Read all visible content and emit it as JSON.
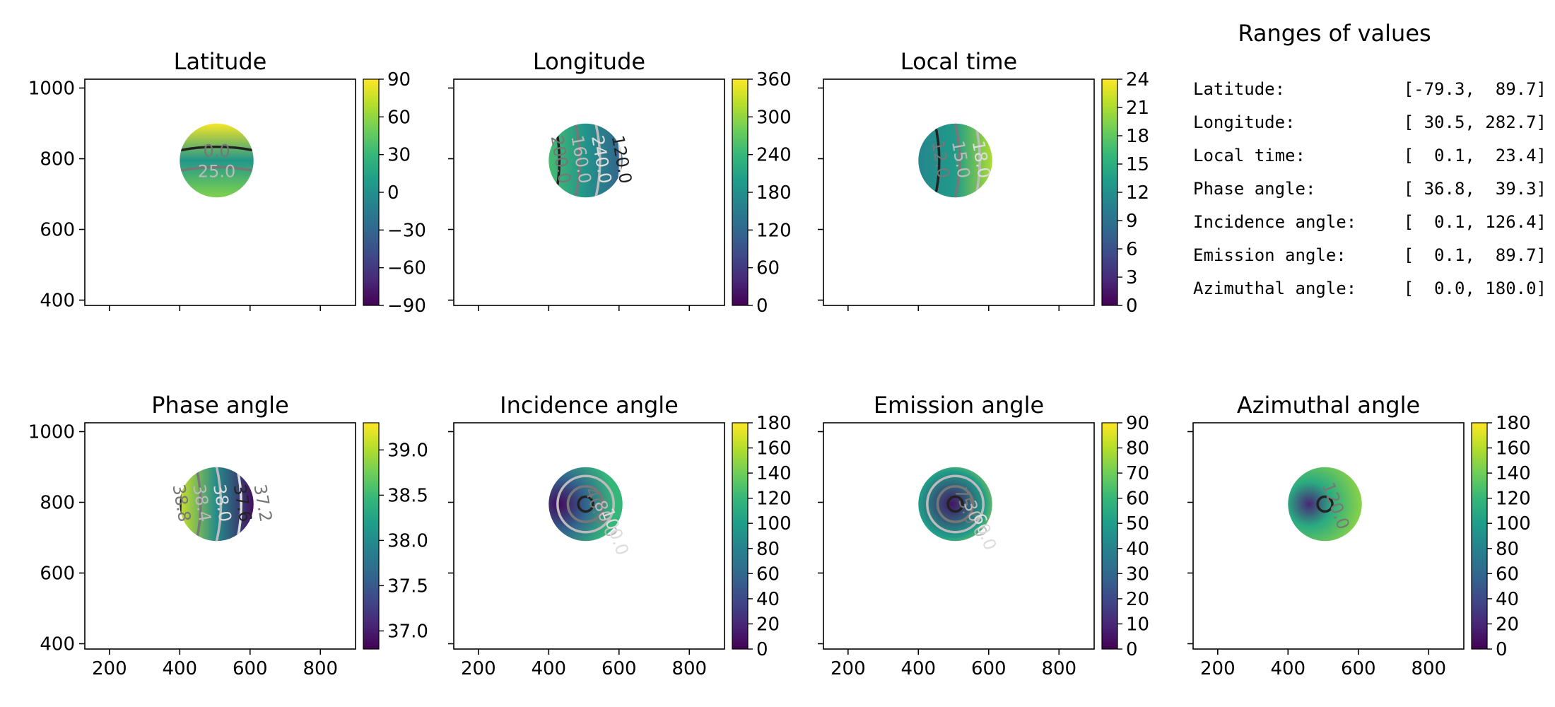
{
  "colormap": [
    "#440154",
    "#482878",
    "#3e4a89",
    "#31688e",
    "#26828e",
    "#1f9e89",
    "#35b779",
    "#6ece58",
    "#b5de2b",
    "#fde725"
  ],
  "chart_data": [
    {
      "type": "heatmap",
      "title": "Latitude",
      "xlim": [
        130,
        900
      ],
      "ylim": [
        385,
        1025
      ],
      "xticks": [
        200,
        400,
        600,
        800
      ],
      "yticks": [
        400,
        600,
        800,
        1000
      ],
      "show_xtick_labels": false,
      "show_ytick_labels": true,
      "disk": {
        "cx": 505,
        "cy": 795,
        "r": 105
      },
      "gradient": {
        "direction": "vertical",
        "stops": [
          {
            "t": 0,
            "v": 88
          },
          {
            "t": 0.5,
            "v": 5
          },
          {
            "t": 1,
            "v": 55
          }
        ]
      },
      "colorbar": {
        "min": -90,
        "max": 90,
        "ticks": [
          90,
          60,
          30,
          0,
          -30,
          -60,
          -90
        ],
        "tick_labels": [
          "90",
          "60",
          "30",
          "0",
          "−30",
          "−60",
          "−90"
        ]
      },
      "contour_labels": [
        "0.0",
        "25.0"
      ]
    },
    {
      "type": "heatmap",
      "title": "Longitude",
      "xlim": [
        130,
        900
      ],
      "ylim": [
        385,
        1025
      ],
      "xticks": [
        200,
        400,
        600,
        800
      ],
      "yticks": [
        400,
        600,
        800,
        1000
      ],
      "show_xtick_labels": false,
      "show_ytick_labels": false,
      "disk": {
        "cx": 505,
        "cy": 795,
        "r": 105
      },
      "gradient": {
        "direction": "horizontal",
        "stops": [
          {
            "t": 0,
            "v": 250
          },
          {
            "t": 0.5,
            "v": 185
          },
          {
            "t": 1,
            "v": 110
          }
        ]
      },
      "colorbar": {
        "min": 0,
        "max": 360,
        "ticks": [
          360,
          300,
          240,
          180,
          120,
          60,
          0
        ],
        "tick_labels": [
          "360",
          "300",
          "240",
          "180",
          "120",
          "60",
          "0"
        ]
      },
      "contour_labels": [
        "200.0",
        "160.0",
        "240.0",
        "120.0"
      ]
    },
    {
      "type": "heatmap",
      "title": "Local time",
      "xlim": [
        130,
        900
      ],
      "ylim": [
        385,
        1025
      ],
      "xticks": [
        200,
        400,
        600,
        800
      ],
      "yticks": [
        400,
        600,
        800,
        1000
      ],
      "show_xtick_labels": false,
      "show_ytick_labels": false,
      "disk": {
        "cx": 505,
        "cy": 795,
        "r": 105
      },
      "gradient": {
        "direction": "horizontal",
        "stops": [
          {
            "t": 0,
            "v": 11
          },
          {
            "t": 0.5,
            "v": 13
          },
          {
            "t": 1,
            "v": 21
          }
        ]
      },
      "colorbar": {
        "min": 0,
        "max": 24,
        "ticks": [
          24,
          21,
          18,
          15,
          12,
          9,
          6,
          3,
          0
        ],
        "tick_labels": [
          "24",
          "21",
          "18",
          "15",
          "12",
          "9",
          "6",
          "3",
          "0"
        ]
      },
      "contour_labels": [
        "12.0",
        "15.0",
        "18.0"
      ]
    },
    {
      "type": "heatmap",
      "title": "Phase angle",
      "xlim": [
        130,
        900
      ],
      "ylim": [
        385,
        1025
      ],
      "xticks": [
        200,
        400,
        600,
        800
      ],
      "yticks": [
        400,
        600,
        800,
        1000
      ],
      "show_xtick_labels": true,
      "show_ytick_labels": true,
      "disk": {
        "cx": 505,
        "cy": 795,
        "r": 105
      },
      "gradient": {
        "direction": "horizontal",
        "stops": [
          {
            "t": 0,
            "v": 39.1
          },
          {
            "t": 0.5,
            "v": 38.0
          },
          {
            "t": 1,
            "v": 36.9
          }
        ]
      },
      "colorbar": {
        "min": 36.8,
        "max": 39.3,
        "ticks": [
          39.0,
          38.5,
          38.0,
          37.5,
          37.0
        ],
        "tick_labels": [
          "39.0",
          "38.5",
          "38.0",
          "37.5",
          "37.0"
        ]
      },
      "contour_labels": [
        "38.8",
        "38.4",
        "38.0",
        "37.6",
        "37.2"
      ]
    },
    {
      "type": "heatmap",
      "title": "Incidence angle",
      "xlim": [
        130,
        900
      ],
      "ylim": [
        385,
        1025
      ],
      "xticks": [
        200,
        400,
        600,
        800
      ],
      "yticks": [
        400,
        600,
        800,
        1000
      ],
      "show_xtick_labels": true,
      "show_ytick_labels": false,
      "disk": {
        "cx": 505,
        "cy": 795,
        "r": 105
      },
      "gradient": {
        "direction": "radial",
        "center": [
          430,
          795
        ],
        "stops": [
          {
            "t": 0,
            "v": 5
          },
          {
            "t": 0.5,
            "v": 60
          },
          {
            "t": 1,
            "v": 120
          }
        ]
      },
      "colorbar": {
        "min": 0,
        "max": 180,
        "ticks": [
          180,
          160,
          140,
          120,
          100,
          80,
          60,
          40,
          20,
          0
        ],
        "tick_labels": [
          "180",
          "160",
          "140",
          "120",
          "100",
          "80",
          "60",
          "40",
          "20",
          "0"
        ]
      },
      "contour_labels": [
        "40.0",
        "80.0",
        "100.0"
      ]
    },
    {
      "type": "heatmap",
      "title": "Emission angle",
      "xlim": [
        130,
        900
      ],
      "ylim": [
        385,
        1025
      ],
      "xticks": [
        200,
        400,
        600,
        800
      ],
      "yticks": [
        400,
        600,
        800,
        1000
      ],
      "show_xtick_labels": true,
      "show_ytick_labels": false,
      "disk": {
        "cx": 505,
        "cy": 795,
        "r": 105
      },
      "gradient": {
        "direction": "radial",
        "center": [
          495,
          795
        ],
        "stops": [
          {
            "t": 0,
            "v": 5
          },
          {
            "t": 0.6,
            "v": 50
          },
          {
            "t": 1,
            "v": 88
          }
        ]
      },
      "colorbar": {
        "min": 0,
        "max": 90,
        "ticks": [
          90,
          80,
          70,
          60,
          50,
          40,
          30,
          20,
          10,
          0
        ],
        "tick_labels": [
          "90",
          "80",
          "70",
          "60",
          "50",
          "40",
          "30",
          "20",
          "10",
          "0"
        ]
      },
      "contour_labels": [
        "75.0",
        "30.0",
        "60.0"
      ]
    },
    {
      "type": "heatmap",
      "title": "Azimuthal angle",
      "xlim": [
        130,
        900
      ],
      "ylim": [
        385,
        1025
      ],
      "xticks": [
        200,
        400,
        600,
        800
      ],
      "yticks": [
        400,
        600,
        800,
        1000
      ],
      "show_xtick_labels": true,
      "show_ytick_labels": false,
      "disk": {
        "cx": 505,
        "cy": 795,
        "r": 105
      },
      "gradient": {
        "direction": "radial",
        "center": [
          460,
          795
        ],
        "stops": [
          {
            "t": 0,
            "v": 20
          },
          {
            "t": 0.4,
            "v": 110
          },
          {
            "t": 1,
            "v": 150
          }
        ]
      },
      "colorbar": {
        "min": 0,
        "max": 180,
        "ticks": [
          180,
          160,
          140,
          120,
          100,
          80,
          60,
          40,
          20,
          0
        ],
        "tick_labels": [
          "180",
          "160",
          "140",
          "120",
          "100",
          "80",
          "60",
          "40",
          "20",
          "0"
        ]
      },
      "contour_labels": [
        "120.0"
      ]
    }
  ],
  "ranges": {
    "title": "Ranges of values",
    "rows": [
      {
        "name": "Latitude:",
        "value": "[-79.3,  89.7]"
      },
      {
        "name": "Longitude:",
        "value": "[ 30.5, 282.7]"
      },
      {
        "name": "Local time:",
        "value": "[  0.1,  23.4]"
      },
      {
        "name": "Phase angle:",
        "value": "[ 36.8,  39.3]"
      },
      {
        "name": "Incidence angle:",
        "value": "[  0.1, 126.4]"
      },
      {
        "name": "Emission angle:",
        "value": "[  0.1,  89.7]"
      },
      {
        "name": "Azimuthal angle:",
        "value": "[  0.0, 180.0]"
      }
    ]
  }
}
